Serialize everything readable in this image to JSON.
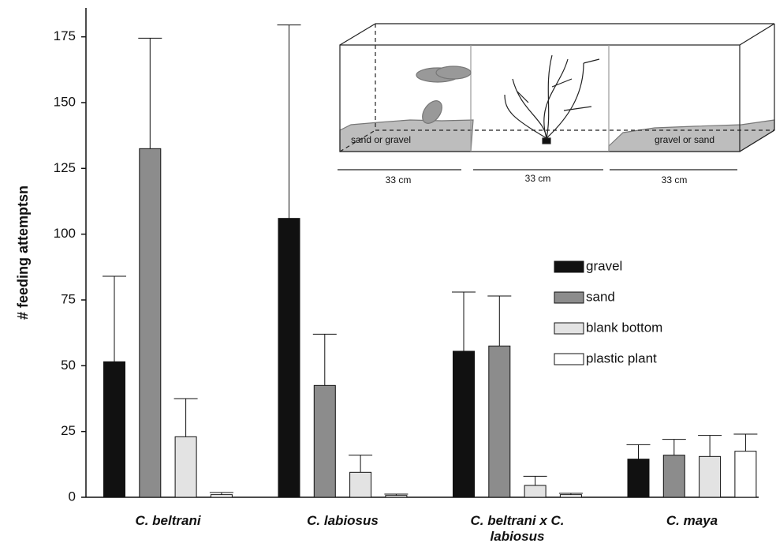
{
  "chart_data": {
    "type": "bar",
    "y_label": "# feeding attemptsn",
    "categories": [
      "C. beltrani",
      "C. labiosus",
      "C. beltrani x C. labiosus",
      "C. maya"
    ],
    "series": [
      {
        "name": "gravel",
        "color": "#111111",
        "values": [
          51.5,
          106,
          55.5,
          14.5
        ],
        "errors": [
          32.5,
          73.5,
          22.5,
          5.5
        ]
      },
      {
        "name": "sand",
        "color": "#8c8c8c",
        "values": [
          132.5,
          42.5,
          57.5,
          16
        ],
        "errors": [
          42,
          19.5,
          19,
          6
        ]
      },
      {
        "name": "blank bottom",
        "color": "#e3e3e3",
        "values": [
          23,
          9.5,
          4.5,
          15.5
        ],
        "errors": [
          14.5,
          6.5,
          3.5,
          8
        ]
      },
      {
        "name": "plastic plant",
        "color": "#ffffff",
        "values": [
          1,
          0.7,
          1,
          17.5
        ],
        "errors": [
          0.8,
          0.5,
          0.5,
          6.5
        ]
      }
    ],
    "ylim": [
      0,
      186
    ],
    "yticks": [
      0,
      25,
      50,
      75,
      100,
      125,
      150,
      175
    ],
    "annotations": [
      "sand or gravel",
      "gravel or sand",
      "33 cm",
      "33 cm",
      "33 cm"
    ]
  }
}
